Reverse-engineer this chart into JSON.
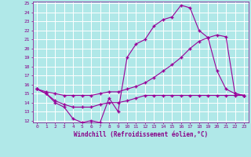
{
  "background_color": "#b0e8e8",
  "grid_color": "#ffffff",
  "line_color": "#990099",
  "marker": "+",
  "xlabel": "Windchill (Refroidissement éolien,°C)",
  "xlabel_color": "#880088",
  "tick_color": "#880088",
  "ylim": [
    12,
    25
  ],
  "xlim": [
    0,
    23
  ],
  "yticks": [
    12,
    13,
    14,
    15,
    16,
    17,
    18,
    19,
    20,
    21,
    22,
    23,
    24,
    25
  ],
  "xticks": [
    0,
    1,
    2,
    3,
    4,
    5,
    6,
    7,
    8,
    9,
    10,
    11,
    12,
    13,
    14,
    15,
    16,
    17,
    18,
    19,
    20,
    21,
    22,
    23
  ],
  "line1_x": [
    0,
    1,
    2,
    3,
    4,
    5,
    6,
    7,
    8,
    9,
    10,
    11,
    12,
    13,
    14,
    15,
    16,
    17,
    18,
    19,
    20,
    21,
    22,
    23
  ],
  "line1_y": [
    15.5,
    15.0,
    14.0,
    13.5,
    12.2,
    11.8,
    12.0,
    11.8,
    14.5,
    13.0,
    19.0,
    20.5,
    21.0,
    22.5,
    23.2,
    23.5,
    24.8,
    24.5,
    22.0,
    21.2,
    17.5,
    15.5,
    15.0,
    14.8
  ],
  "line2_x": [
    0,
    1,
    2,
    3,
    4,
    5,
    6,
    7,
    8,
    9,
    10,
    11,
    12,
    13,
    14,
    15,
    16,
    17,
    18,
    19,
    20,
    21,
    22,
    23
  ],
  "line2_y": [
    15.5,
    15.2,
    15.0,
    14.8,
    14.8,
    14.8,
    14.8,
    15.0,
    15.2,
    15.2,
    15.5,
    15.8,
    16.2,
    16.8,
    17.5,
    18.2,
    19.0,
    20.0,
    20.8,
    21.2,
    21.5,
    21.3,
    15.0,
    14.8
  ],
  "line3_x": [
    0,
    1,
    2,
    3,
    4,
    5,
    6,
    7,
    8,
    9,
    10,
    11,
    12,
    13,
    14,
    15,
    16,
    17,
    18,
    19,
    20,
    21,
    22,
    23
  ],
  "line3_y": [
    15.5,
    15.0,
    14.2,
    13.8,
    13.5,
    13.5,
    13.5,
    13.8,
    14.0,
    14.0,
    14.2,
    14.5,
    14.8,
    14.8,
    14.8,
    14.8,
    14.8,
    14.8,
    14.8,
    14.8,
    14.8,
    14.8,
    14.8,
    14.8
  ]
}
